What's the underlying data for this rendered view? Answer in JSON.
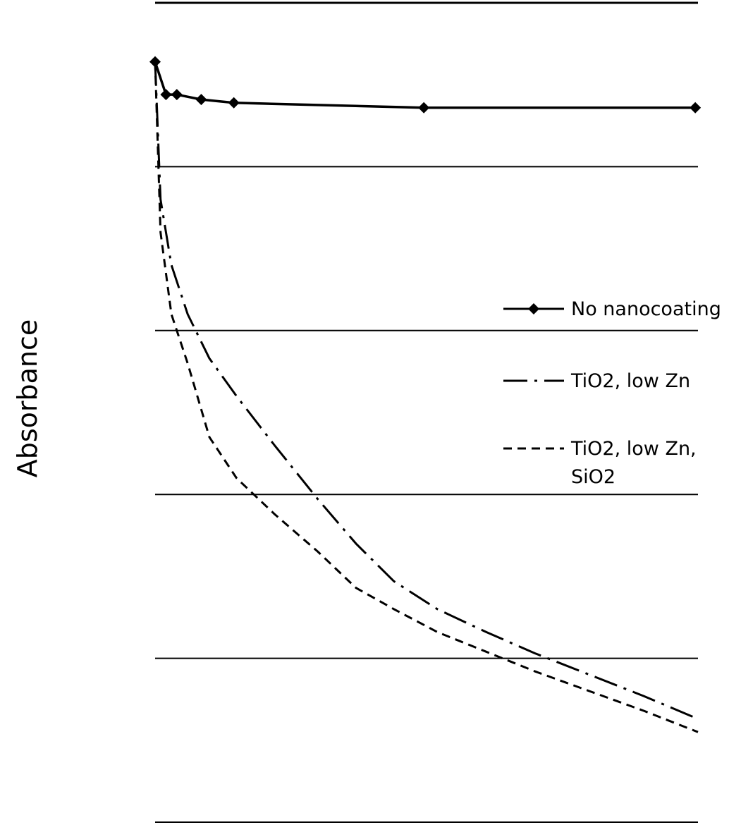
{
  "chart_data": {
    "type": "line",
    "ylabel": "Absorbance",
    "xlabel": "",
    "grid": true,
    "legend_position": "right",
    "xlim": [
      0,
      100
    ],
    "ylim": [
      0,
      5
    ],
    "gridlines_y": [
      0,
      1,
      2,
      3,
      4,
      5
    ],
    "series": [
      {
        "name": "No nanocoating",
        "style": "solid-marker",
        "color": "#000000",
        "x": [
          0,
          2,
          4,
          8.5,
          14.5,
          49.5,
          99.5
        ],
        "y": [
          4.64,
          4.44,
          4.44,
          4.41,
          4.39,
          4.36,
          4.36
        ]
      },
      {
        "name": "TiO2, low Zn",
        "style": "long-dash-dot",
        "color": "#000000",
        "x": [
          0,
          1,
          3,
          6,
          10,
          15,
          22,
          30,
          37,
          44,
          52,
          61,
          70,
          80,
          90,
          100
        ],
        "y": [
          4.64,
          3.8,
          3.4,
          3.1,
          2.83,
          2.6,
          2.3,
          1.97,
          1.7,
          1.47,
          1.3,
          1.16,
          1.03,
          0.9,
          0.77,
          0.63
        ]
      },
      {
        "name": "TiO2, low Zn, SiO2",
        "style": "dashed",
        "color": "#000000",
        "x": [
          0,
          1,
          3,
          6,
          10,
          15,
          22,
          30,
          37,
          44,
          52,
          61,
          70,
          80,
          90,
          100
        ],
        "y": [
          4.64,
          3.6,
          3.1,
          2.8,
          2.35,
          2.1,
          1.88,
          1.65,
          1.43,
          1.3,
          1.16,
          1.04,
          0.92,
          0.8,
          0.68,
          0.55
        ]
      }
    ]
  }
}
